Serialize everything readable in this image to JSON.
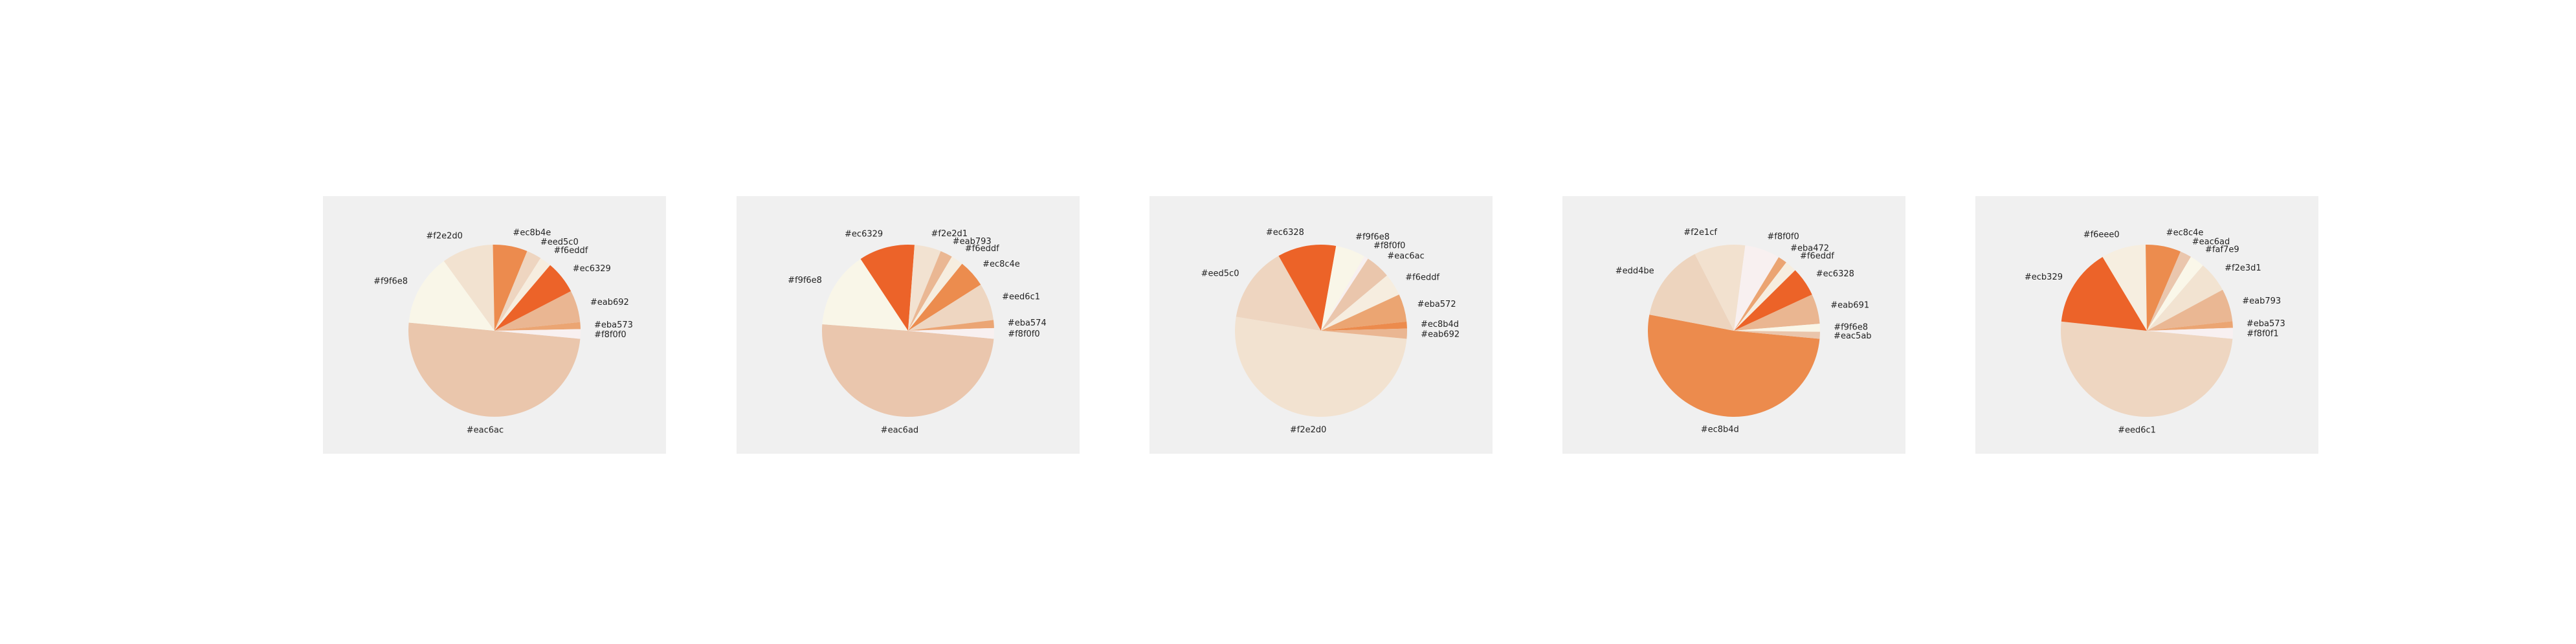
{
  "chart_data": [
    {
      "type": "pie",
      "categories": [
        "#eac6ac",
        "#f9f6e8",
        "#f2e2d0",
        "#ec8b4e",
        "#eed5c0",
        "#f6eddf",
        "#ec6329",
        "#eab692",
        "#eba573",
        "#f8f0f0"
      ],
      "values": [
        50.0,
        13.5,
        9.7,
        6.5,
        2.8,
        2.2,
        6.2,
        6.0,
        1.3,
        1.8
      ],
      "colors": [
        "#eac6ac",
        "#f9f6e8",
        "#f2e2d0",
        "#ec8b4e",
        "#eed5c0",
        "#f6eddf",
        "#ec6329",
        "#eab692",
        "#eba573",
        "#f8f0f0"
      ]
    },
    {
      "type": "pie",
      "categories": [
        "#eac6ad",
        "#f9f6e8",
        "#ec6329",
        "#f2e2d1",
        "#eab793",
        "#f6eddf",
        "#ec8c4e",
        "#eed6c1",
        "#eba574",
        "#f8f0f0"
      ],
      "values": [
        49.7,
        14.5,
        10.5,
        5.0,
        2.3,
        2.3,
        5.2,
        7.0,
        1.5,
        2.0
      ],
      "colors": [
        "#eac6ad",
        "#f9f6e8",
        "#ec6329",
        "#f2e2d1",
        "#eab793",
        "#f6eddf",
        "#ec8c4e",
        "#eed6c1",
        "#eba574",
        "#f8f0f0"
      ]
    },
    {
      "type": "pie",
      "categories": [
        "#f2e2d0",
        "#eed5c0",
        "#ec6328",
        "#f9f6e8",
        "#f8f0f0",
        "#eac6ac",
        "#f6eddf",
        "#eba572",
        "#ec8b4d",
        "#eab692"
      ],
      "values": [
        51.1,
        14.2,
        11.0,
        5.6,
        0.8,
        4.7,
        4.2,
        5.2,
        1.3,
        1.9
      ],
      "colors": [
        "#f2e2d0",
        "#eed5c0",
        "#ec6328",
        "#f9f6e8",
        "#f8f0f0",
        "#eac6ac",
        "#f6eddf",
        "#eba572",
        "#ec8b4d",
        "#eab692"
      ]
    },
    {
      "type": "pie",
      "categories": [
        "#ec8b4d",
        "#edd4be",
        "#f2e1cf",
        "#f8f0f0",
        "#eba472",
        "#f6eddf",
        "#ec6328",
        "#eab691",
        "#f9f6e8",
        "#eac5ab"
      ],
      "values": [
        51.5,
        14.5,
        9.6,
        6.6,
        1.7,
        2.2,
        5.5,
        5.6,
        1.5,
        1.3
      ],
      "colors": [
        "#ec8b4d",
        "#edd4be",
        "#f2e1cf",
        "#f8f0f0",
        "#eba472",
        "#f6eddf",
        "#ec6328",
        "#eab691",
        "#f9f6e8",
        "#eac5ab"
      ]
    },
    {
      "type": "pie",
      "categories": [
        "#eed6c1",
        "#ecb329",
        "#f6eee0",
        "#ec8c4e",
        "#eac6ad",
        "#faf7e9",
        "#f2e3d1",
        "#eab793",
        "#eba573",
        "#f8f0f1"
      ],
      "values": [
        49.2,
        14.4,
        8.2,
        6.5,
        2.1,
        2.7,
        5.7,
        6.0,
        1.2,
        2.0
      ],
      "colors": [
        "#eed6c1",
        "#ec6329",
        "#f6eee0",
        "#ec8c4e",
        "#eac6ad",
        "#faf7e9",
        "#f2e3d1",
        "#eab793",
        "#eba573",
        "#f8f0f1"
      ]
    }
  ]
}
